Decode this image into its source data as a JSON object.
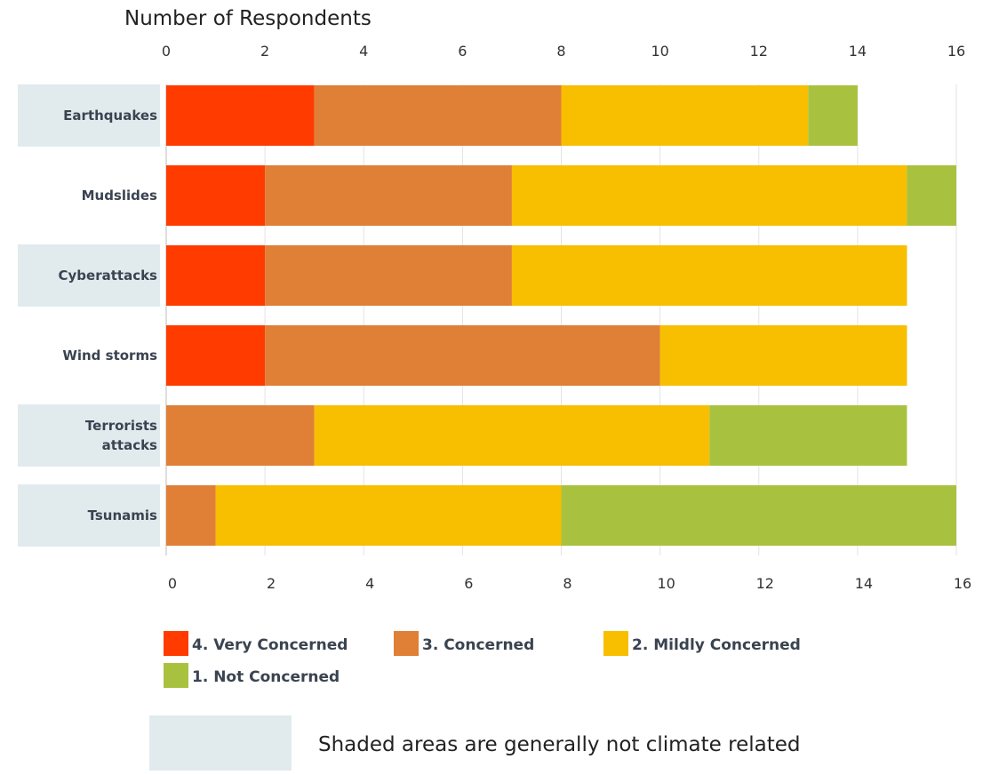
{
  "chart_data": {
    "type": "bar",
    "orientation": "horizontal",
    "stacked": true,
    "title": "Number of Respondents",
    "xlim": [
      0,
      16
    ],
    "xticks": [
      "0",
      "2",
      "4",
      "6",
      "8",
      "10",
      "12",
      "14",
      "16"
    ],
    "grid": true,
    "categories": [
      {
        "label": "Earthquakes",
        "shaded": true
      },
      {
        "label": "Mudslides",
        "shaded": false
      },
      {
        "label": "Cyberattacks",
        "shaded": true
      },
      {
        "label": "Wind storms",
        "shaded": false
      },
      {
        "label": "Terrorists attacks",
        "shaded": true
      },
      {
        "label": "Tsunamis",
        "shaded": true
      }
    ],
    "series": [
      {
        "name": "4. Very Concerned",
        "color": "#ff3b00",
        "values": [
          3,
          2,
          2,
          2,
          0,
          0
        ]
      },
      {
        "name": "3. Concerned",
        "color": "#e07f36",
        "values": [
          5,
          5,
          5,
          8,
          3,
          1
        ]
      },
      {
        "name": "2. Mildly Concerned",
        "color": "#f8be00",
        "values": [
          5,
          8,
          8,
          5,
          8,
          7
        ]
      },
      {
        "name": "1. Not Concerned",
        "color": "#a8c23f",
        "values": [
          1,
          1,
          0,
          0,
          4,
          8
        ]
      }
    ],
    "legend_position": "bottom",
    "shade_color": "#e1ebee",
    "note": "Shaded areas are generally not climate related"
  }
}
